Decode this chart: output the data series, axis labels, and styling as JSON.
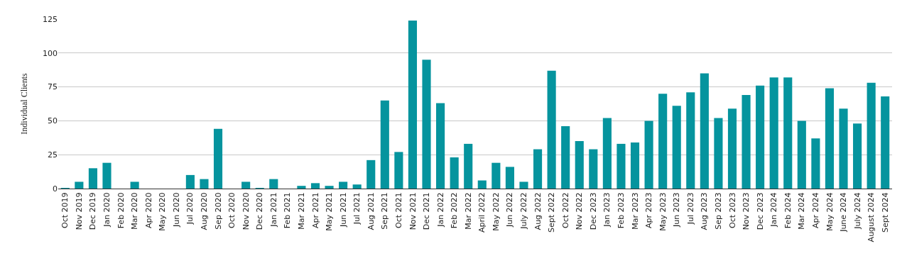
{
  "chart_data": {
    "type": "bar",
    "ylabel": "Individual Clients",
    "color": "#05949e",
    "categories": [
      "Oct 2019",
      "Nov 2019",
      "Dec 2019",
      "Jan 2020",
      "Feb 2020",
      "Mar 2020",
      "Apr 2020",
      "May 2020",
      "Jun 2020",
      "Jul 2020",
      "Aug 2020",
      "Sep 2020",
      "Oct 2020",
      "Nov 2020",
      "Dec 2020",
      "Jan 2021",
      "Feb 2021",
      "Mar 2021",
      "Apr 2021",
      "May 2021",
      "Jun 2021",
      "Jul 2021",
      "Aug 2021",
      "Sep 2021",
      "Oct 2021",
      "Nov 2021",
      "Dec 2021",
      "Jan 2022",
      "Feb 2022",
      "Mar 2022",
      "April 2022",
      "May 2022",
      "Jun 2022",
      "July 2022",
      "Aug 2022",
      "Sept 2022",
      "Oct 2022",
      "Nov 2022",
      "Dec 2023",
      "Jan 2023",
      "Feb 2023",
      "Mar 2023",
      "Apr 2023",
      "May 2023",
      "Jun 2023",
      "Jul 2023",
      "Aug 2023",
      "Sep 2023",
      "Oct 2023",
      "Nov 2023",
      "Dec 2023",
      "Jan 2024",
      "Feb 2024",
      "Mar 2024",
      "Apr 2024",
      "May 2024",
      "June 2024",
      "July 2024",
      "August 2024",
      "Sept 2024"
    ],
    "values": [
      0.5,
      5,
      15,
      19,
      0,
      5,
      0,
      0,
      0,
      10,
      7,
      44,
      0,
      5,
      0.5,
      7,
      0,
      2,
      4,
      2,
      5,
      3,
      21,
      65,
      27,
      124,
      95,
      63,
      23,
      33,
      6,
      19,
      16,
      5,
      29,
      87,
      46,
      35,
      29,
      52,
      33,
      34,
      50,
      70,
      61,
      71,
      85,
      52,
      59,
      69,
      76,
      82,
      82,
      50,
      37,
      74,
      59,
      48,
      78,
      68
    ],
    "ylim": [
      0,
      125
    ],
    "yticks": [
      0,
      25,
      50,
      75,
      100,
      125
    ],
    "grid": "y"
  }
}
